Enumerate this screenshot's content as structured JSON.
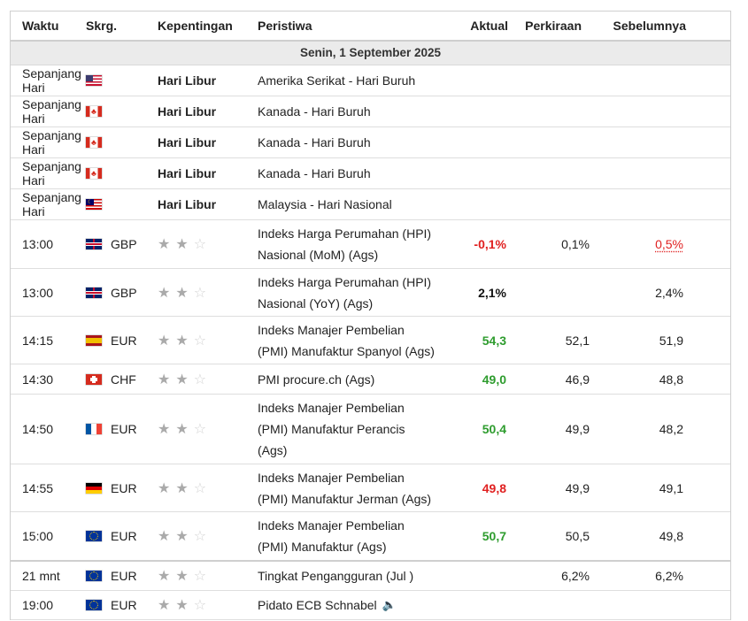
{
  "headers": {
    "time": "Waktu",
    "currency": "Skrg.",
    "importance": "Kepentingan",
    "event": "Peristiwa",
    "actual": "Aktual",
    "forecast": "Perkiraan",
    "previous": "Sebelumnya"
  },
  "date_label": "Senin, 1 September 2025",
  "holiday_rows": [
    {
      "time": "Sepanjang Hari",
      "flag": "us",
      "importance": "Hari Libur",
      "event": "Amerika Serikat - Hari Buruh"
    },
    {
      "time": "Sepanjang Hari",
      "flag": "ca",
      "importance": "Hari Libur",
      "event": "Kanada - Hari Buruh"
    },
    {
      "time": "Sepanjang Hari",
      "flag": "ca",
      "importance": "Hari Libur",
      "event": "Kanada - Hari Buruh"
    },
    {
      "time": "Sepanjang Hari",
      "flag": "ca",
      "importance": "Hari Libur",
      "event": "Kanada - Hari Buruh"
    },
    {
      "time": "Sepanjang Hari",
      "flag": "my",
      "importance": "Hari Libur",
      "event": "Malaysia - Hari Nasional"
    }
  ],
  "event_rows": [
    {
      "time": "13:00",
      "flag": "gb",
      "currency": "GBP",
      "stars": 2,
      "event_lines": [
        "Indeks Harga Perumahan (HPI)",
        "Nasional (MoM) (Ags)"
      ],
      "actual": "-0,1%",
      "actual_color": "#e02020",
      "forecast": "0,1%",
      "previous": "0,5%",
      "previous_color": "#e02020"
    },
    {
      "time": "13:00",
      "flag": "gb",
      "currency": "GBP",
      "stars": 2,
      "event_lines": [
        "Indeks Harga Perumahan (HPI)",
        "Nasional (YoY) (Ags)"
      ],
      "actual": "2,1%",
      "actual_color": "#111111",
      "forecast": "",
      "previous": "2,4%",
      "previous_color": "#222222"
    },
    {
      "time": "14:15",
      "flag": "es",
      "currency": "EUR",
      "stars": 2,
      "event_lines": [
        "Indeks Manajer Pembelian",
        "(PMI) Manufaktur Spanyol (Ags)"
      ],
      "actual": "54,3",
      "actual_color": "#2e9c2e",
      "forecast": "52,1",
      "previous": "51,9",
      "previous_color": "#222222"
    },
    {
      "time": "14:30",
      "flag": "ch",
      "currency": "CHF",
      "stars": 2,
      "event_lines": [
        "PMI procure.ch (Ags)"
      ],
      "actual": "49,0",
      "actual_color": "#2e9c2e",
      "forecast": "46,9",
      "previous": "48,8",
      "previous_color": "#222222"
    },
    {
      "time": "14:50",
      "flag": "fr",
      "currency": "EUR",
      "stars": 2,
      "event_lines": [
        "Indeks Manajer Pembelian",
        "(PMI) Manufaktur Perancis",
        "(Ags)"
      ],
      "actual": "50,4",
      "actual_color": "#2e9c2e",
      "forecast": "49,9",
      "previous": "48,2",
      "previous_color": "#222222"
    },
    {
      "time": "14:55",
      "flag": "de",
      "currency": "EUR",
      "stars": 2,
      "event_lines": [
        "Indeks Manajer Pembelian",
        "(PMI) Manufaktur Jerman (Ags)"
      ],
      "actual": "49,8",
      "actual_color": "#e02020",
      "forecast": "49,9",
      "previous": "49,1",
      "previous_color": "#222222"
    },
    {
      "time": "15:00",
      "flag": "eu",
      "currency": "EUR",
      "stars": 2,
      "event_lines": [
        "Indeks Manajer Pembelian",
        "(PMI) Manufaktur (Ags)"
      ],
      "actual": "50,7",
      "actual_color": "#2e9c2e",
      "forecast": "50,5",
      "previous": "49,8",
      "previous_color": "#222222"
    },
    {
      "time": "21 mnt",
      "flag": "eu",
      "currency": "EUR",
      "stars": 2,
      "event_lines": [
        "Tingkat Pengangguran (Jul )"
      ],
      "actual": "",
      "actual_color": "#222222",
      "forecast": "6,2%",
      "previous": "6,2%",
      "previous_color": "#222222"
    },
    {
      "time": "19:00",
      "flag": "eu",
      "currency": "EUR",
      "stars": 2,
      "event_lines": [
        "Pidato ECB Schnabel"
      ],
      "actual": "",
      "actual_color": "#222222",
      "forecast": "",
      "previous": "",
      "previous_color": "#222222",
      "speech_icon": "speaker-icon"
    }
  ]
}
